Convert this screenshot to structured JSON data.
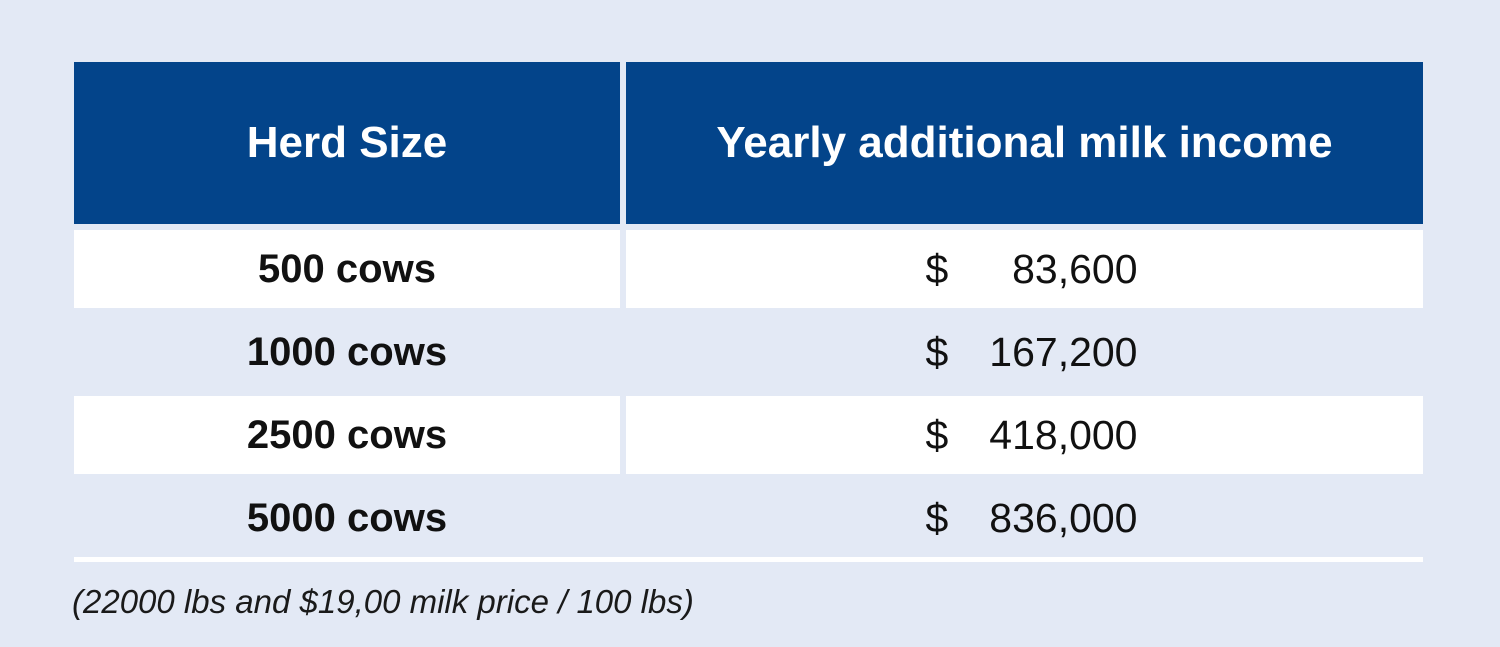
{
  "chart_data": {
    "type": "table",
    "columns": [
      "Herd Size",
      "Yearly additional milk income"
    ],
    "rows": [
      {
        "herd": "500 cows",
        "currency": "$",
        "amount": "83,600"
      },
      {
        "herd": "1000 cows",
        "currency": "$",
        "amount": "167,200"
      },
      {
        "herd": "2500 cows",
        "currency": "$",
        "amount": "418,000"
      },
      {
        "herd": "5000 cows",
        "currency": "$",
        "amount": "836,000"
      }
    ]
  },
  "footnote": "(22000 lbs and $19,00 milk price / 100 lbs)",
  "colors": {
    "background": "#e3e9f5",
    "header": "#03448a",
    "row_light": "#ffffff"
  }
}
